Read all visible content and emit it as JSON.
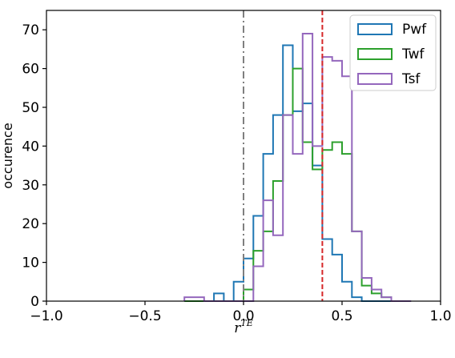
{
  "chart_data": {
    "type": "histogram",
    "xlabel": "r",
    "xlabel_sup": "TE",
    "ylabel": "occurence",
    "xlim": [
      -1.0,
      1.0
    ],
    "ylim": [
      0,
      75
    ],
    "xticks": [
      -1.0,
      -0.5,
      0.0,
      0.5,
      1.0
    ],
    "xtick_labels": [
      "−1.0",
      "−0.5",
      "0.0",
      "0.5",
      "1.0"
    ],
    "yticks": [
      0,
      10,
      20,
      30,
      40,
      50,
      60,
      70
    ],
    "ytick_labels": [
      "0",
      "10",
      "20",
      "30",
      "40",
      "50",
      "60",
      "70"
    ],
    "grid": false,
    "legend_position": "top-right",
    "bin_edges": [
      -0.3,
      -0.25,
      -0.2,
      -0.15,
      -0.1,
      -0.05,
      0.0,
      0.05,
      0.1,
      0.15,
      0.2,
      0.25,
      0.3,
      0.35,
      0.4,
      0.45,
      0.5,
      0.55,
      0.6,
      0.65,
      0.7,
      0.75,
      0.8,
      0.85
    ],
    "series": [
      {
        "name": "Pwf",
        "color": "#1f77b4",
        "values": [
          0,
          0,
          0,
          2,
          0,
          5,
          11,
          22,
          38,
          48,
          66,
          49,
          51,
          35,
          16,
          12,
          5,
          1,
          0,
          0,
          0,
          0,
          0
        ]
      },
      {
        "name": "Twf",
        "color": "#2ca02c",
        "values": [
          0,
          0,
          0,
          0,
          0,
          0,
          3,
          13,
          18,
          31,
          48,
          60,
          41,
          34,
          39,
          41,
          38,
          18,
          4,
          2,
          1,
          0,
          0
        ]
      },
      {
        "name": "Tsf",
        "color": "#9467bd",
        "values": [
          1,
          1,
          0,
          0,
          0,
          0,
          0,
          9,
          26,
          17,
          48,
          38,
          69,
          40,
          63,
          62,
          58,
          18,
          6,
          3,
          1,
          0,
          0
        ]
      }
    ],
    "vlines": [
      {
        "x": 0.0,
        "color": "#7f7f7f",
        "style": "dash-dot"
      },
      {
        "x": 0.4,
        "color": "#d62728",
        "style": "dashed"
      }
    ]
  }
}
